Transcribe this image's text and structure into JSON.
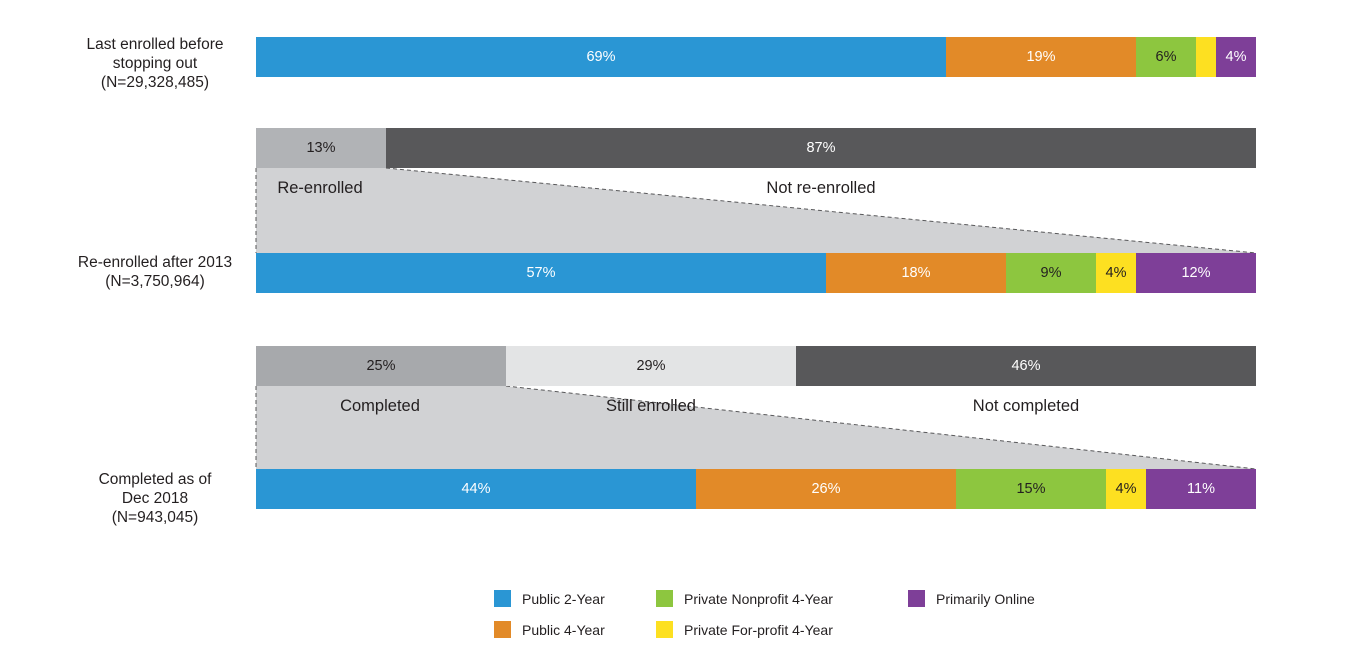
{
  "chart_data": {
    "type": "bar",
    "orientation": "horizontal",
    "stacked": true,
    "colors": {
      "Public 2-Year": "#2a96d4",
      "Public 4-Year": "#e28a28",
      "Private Nonprofit 4-Year": "#8dc63f",
      "Private For-profit 4-Year": "#fde021",
      "Primarily Online": "#7e3f98",
      "re_enrolled": "#b1b3b6",
      "not_re_enrolled": "#58585a",
      "completed": "#a7a9ac",
      "still_enrolled": "#e3e4e5",
      "not_completed": "#58585a",
      "funnel": "#d1d2d4"
    },
    "legend": [
      {
        "key": "Public 2-Year",
        "label": "Public 2-Year"
      },
      {
        "key": "Private Nonprofit 4-Year",
        "label": "Private Nonprofit 4-Year"
      },
      {
        "key": "Primarily Online",
        "label": "Primarily Online"
      },
      {
        "key": "Public 4-Year",
        "label": "Public 4-Year"
      },
      {
        "key": "Private For-profit 4-Year",
        "label": "Private For-profit 4-Year"
      }
    ],
    "sector_bars": [
      {
        "id": "last-enrolled",
        "label_lines": [
          "Last enrolled before",
          "stopping out",
          "(N=29,328,485)"
        ],
        "segments": [
          {
            "sector": "Public 2-Year",
            "value": 69,
            "label": "69%"
          },
          {
            "sector": "Public 4-Year",
            "value": 19,
            "label": "19%"
          },
          {
            "sector": "Private Nonprofit 4-Year",
            "value": 6,
            "label": "6%"
          },
          {
            "sector": "Private For-profit 4-Year",
            "value": 2,
            "label": ""
          },
          {
            "sector": "Primarily Online",
            "value": 4,
            "label": "4%"
          }
        ]
      },
      {
        "id": "re-enrolled",
        "label_lines": [
          "Re-enrolled after 2013",
          "(N=3,750,964)"
        ],
        "segments": [
          {
            "sector": "Public 2-Year",
            "value": 57,
            "label": "57%"
          },
          {
            "sector": "Public 4-Year",
            "value": 18,
            "label": "18%"
          },
          {
            "sector": "Private Nonprofit 4-Year",
            "value": 9,
            "label": "9%"
          },
          {
            "sector": "Private For-profit 4-Year",
            "value": 4,
            "label": "4%"
          },
          {
            "sector": "Primarily Online",
            "value": 12,
            "label": "12%"
          }
        ]
      },
      {
        "id": "completed",
        "label_lines": [
          "Completed as of",
          "Dec 2018",
          "(N=943,045)"
        ],
        "segments": [
          {
            "sector": "Public 2-Year",
            "value": 44,
            "label": "44%"
          },
          {
            "sector": "Public 4-Year",
            "value": 26,
            "label": "26%"
          },
          {
            "sector": "Private Nonprofit 4-Year",
            "value": 15,
            "label": "15%"
          },
          {
            "sector": "Private For-profit 4-Year",
            "value": 4,
            "label": "4%"
          },
          {
            "sector": "Primarily Online",
            "value": 11,
            "label": "11%"
          }
        ]
      }
    ],
    "status_bars": [
      {
        "id": "re-enrollment-status",
        "segments": [
          {
            "key": "re_enrolled",
            "value": 13,
            "label": "13%",
            "caption": "Re-enrolled"
          },
          {
            "key": "not_re_enrolled",
            "value": 87,
            "label": "87%",
            "caption": "Not re-enrolled"
          }
        ]
      },
      {
        "id": "completion-status",
        "segments": [
          {
            "key": "completed",
            "value": 25,
            "label": "25%",
            "caption": "Completed"
          },
          {
            "key": "still_enrolled",
            "value": 29,
            "label": "29%",
            "caption": "Still enrolled"
          },
          {
            "key": "not_completed",
            "value": 46,
            "label": "46%",
            "caption": "Not completed"
          }
        ]
      }
    ]
  }
}
